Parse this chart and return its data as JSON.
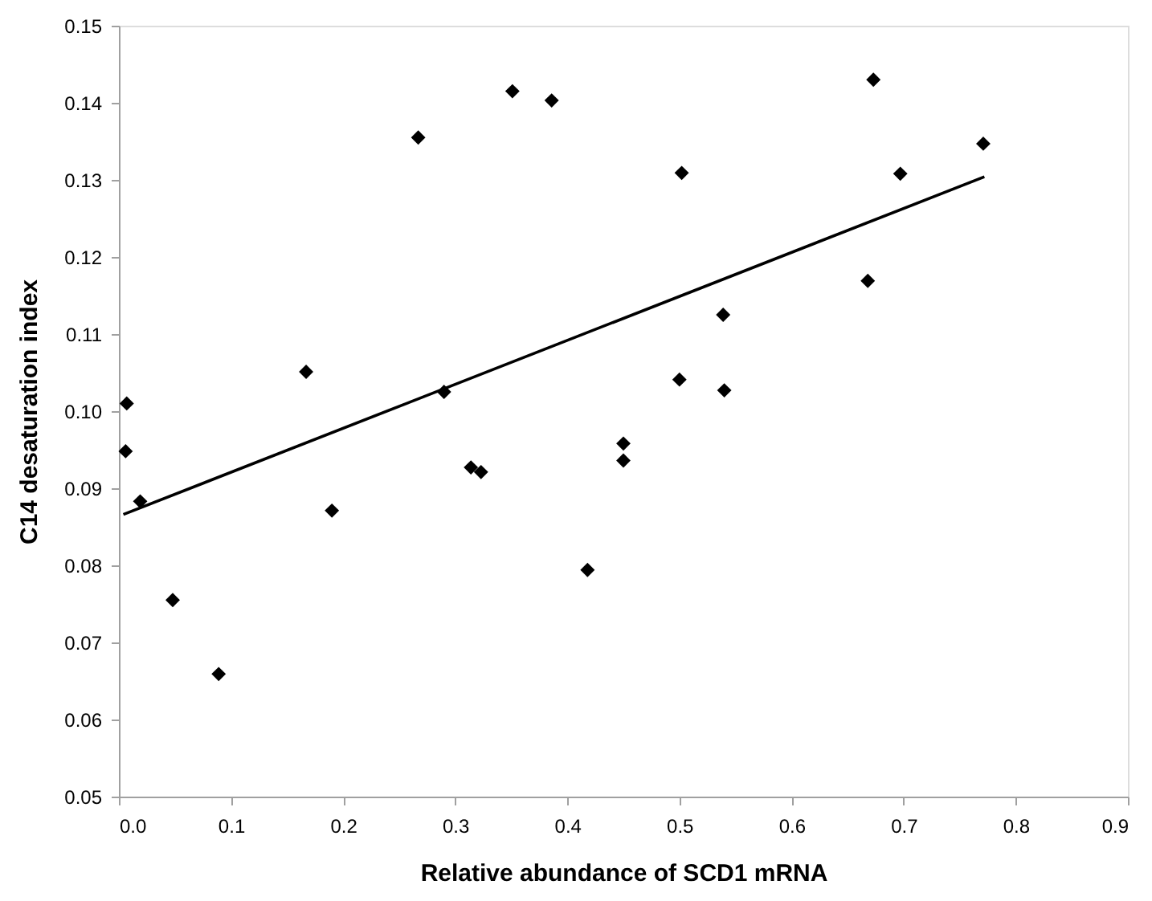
{
  "chart_data": {
    "type": "scatter",
    "xlabel": "Relative abundance of SCD1 mRNA",
    "ylabel": "C14 desaturation index",
    "xlim": [
      0,
      0.9
    ],
    "ylim": [
      0.05,
      0.15
    ],
    "xticks": [
      {
        "value": 0,
        "label": "0.0"
      },
      0.1,
      0.2,
      0.3,
      0.4,
      0.5,
      0.6,
      0.7,
      0.8,
      0.9
    ],
    "yticks": [
      0.05,
      0.06,
      0.07,
      0.08,
      0.09,
      {
        "value": 0.1,
        "label": "0.10"
      },
      0.11,
      0.12,
      0.13,
      0.14,
      0.15
    ],
    "grid": false,
    "marker": "diamond",
    "series": [
      {
        "type": "scatter",
        "color": "#000000",
        "x": [
          0.007,
          0.006,
          0.019,
          0.048,
          0.089,
          0.167,
          0.19,
          0.267,
          0.29,
          0.314,
          0.323,
          0.351,
          0.386,
          0.418,
          0.45,
          0.45,
          0.5,
          0.502,
          0.539,
          0.54,
          0.668,
          0.673,
          0.697,
          0.771
        ],
        "values": [
          0.101,
          0.0948,
          0.0883,
          0.0755,
          0.0659,
          0.1051,
          0.0871,
          0.1355,
          0.1025,
          0.0927,
          0.0921,
          0.1415,
          0.1403,
          0.0794,
          0.0958,
          0.0936,
          0.1041,
          0.1309,
          0.1125,
          0.1027,
          0.1169,
          0.143,
          0.1308,
          0.1347
        ]
      },
      {
        "type": "line",
        "color": "#000000",
        "marker": "none",
        "x": [
          0.004,
          0.772
        ],
        "values": [
          0.0866,
          0.1304
        ]
      }
    ]
  }
}
